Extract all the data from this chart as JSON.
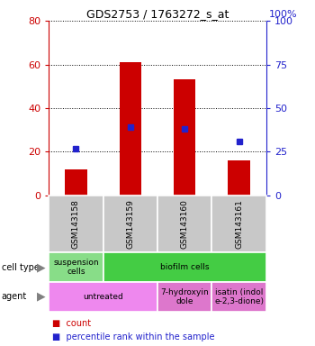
{
  "title": "GDS2753 / 1763272_s_at",
  "samples": [
    "GSM143158",
    "GSM143159",
    "GSM143160",
    "GSM143161"
  ],
  "bar_tops": [
    12,
    61,
    53,
    16
  ],
  "percentile_ranks_pct": [
    27,
    39,
    38,
    31
  ],
  "ylim_left": [
    0,
    80
  ],
  "ylim_right": [
    0,
    100
  ],
  "yticks_left": [
    0,
    20,
    40,
    60,
    80
  ],
  "yticks_right": [
    0,
    25,
    50,
    75,
    100
  ],
  "bar_color": "#cc0000",
  "dot_color": "#2222cc",
  "cell_type_defs": [
    {
      "label": "suspension\ncells",
      "start": 0,
      "end": 1,
      "color": "#88dd88"
    },
    {
      "label": "biofilm cells",
      "start": 1,
      "end": 4,
      "color": "#44cc44"
    }
  ],
  "agent_defs": [
    {
      "label": "untreated",
      "start": 0,
      "end": 2,
      "color": "#ee88ee"
    },
    {
      "label": "7-hydroxyin\ndole",
      "start": 2,
      "end": 3,
      "color": "#dd77cc"
    },
    {
      "label": "isatin (indol\ne-2,3-dione)",
      "start": 3,
      "end": 4,
      "color": "#dd77cc"
    }
  ],
  "legend_count_color": "#cc0000",
  "legend_dot_color": "#2222cc",
  "bg_color": "#ffffff",
  "left_tick_color": "#cc0000",
  "right_tick_color": "#2222cc",
  "gray_cell_color": "#c8c8c8",
  "bar_width": 0.4
}
